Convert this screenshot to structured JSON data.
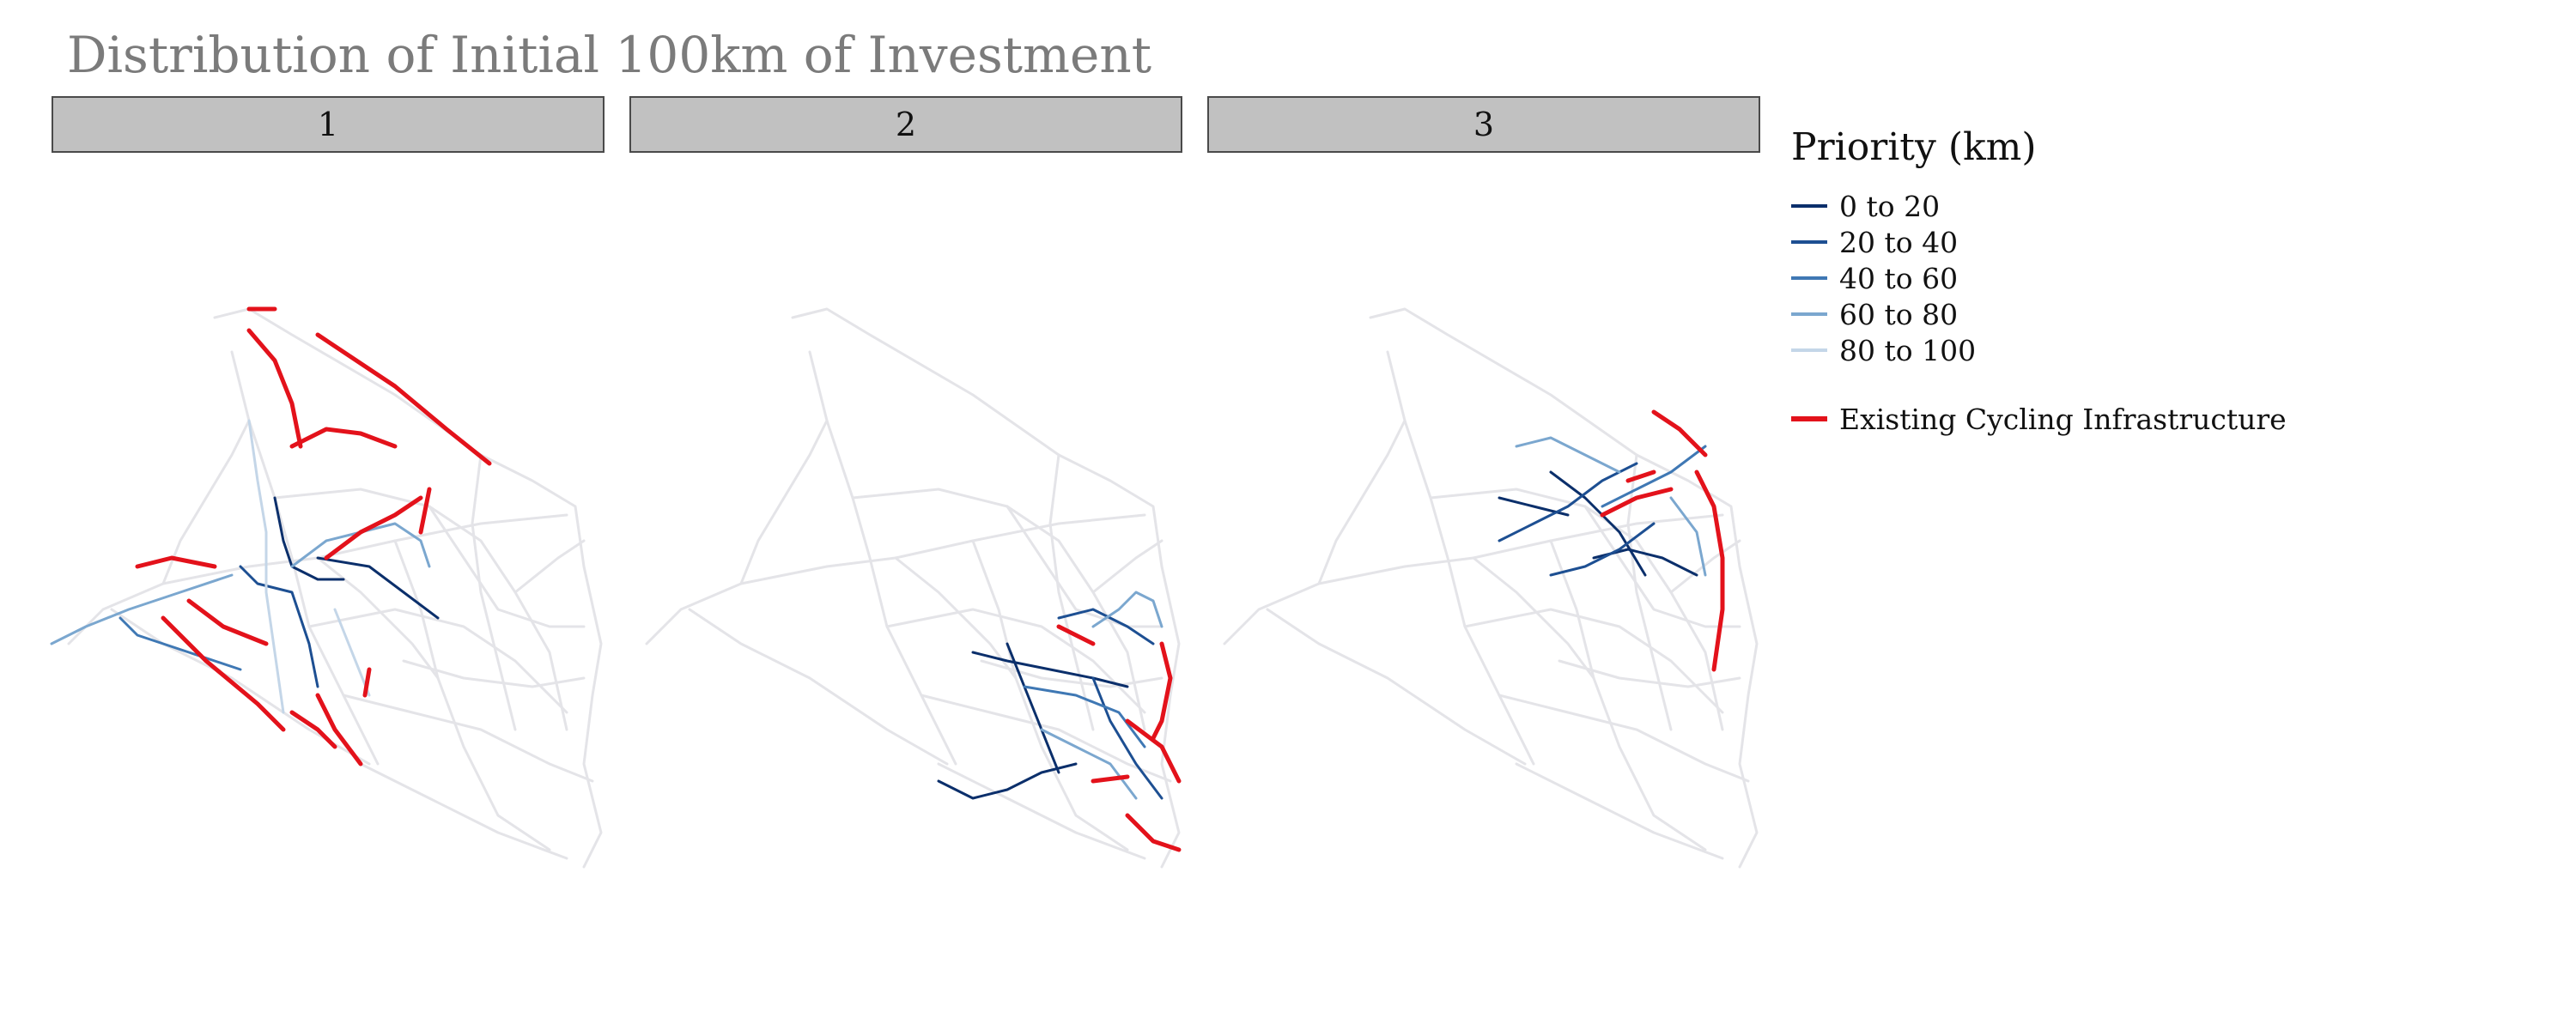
{
  "title": "Distribution of Initial 100km of Investment",
  "panels": [
    {
      "label": "1"
    },
    {
      "label": "2"
    },
    {
      "label": "3"
    }
  ],
  "legend": {
    "title": "Priority (km)",
    "items": [
      {
        "label": "0 to 20",
        "color": "#0b2f6b"
      },
      {
        "label": "20 to 40",
        "color": "#1d4f92"
      },
      {
        "label": "40 to 60",
        "color": "#3f78b4"
      },
      {
        "label": "60 to 80",
        "color": "#7ba7cf"
      },
      {
        "label": "80 to 100",
        "color": "#c4d6e8"
      }
    ],
    "infrastructure": {
      "label": "Existing Cycling Infrastructure",
      "color": "#e3121b"
    }
  },
  "colors": {
    "basemap": "#e4e4e8",
    "strip_bg": "#c1c1c1",
    "title": "#7b7b7b"
  }
}
